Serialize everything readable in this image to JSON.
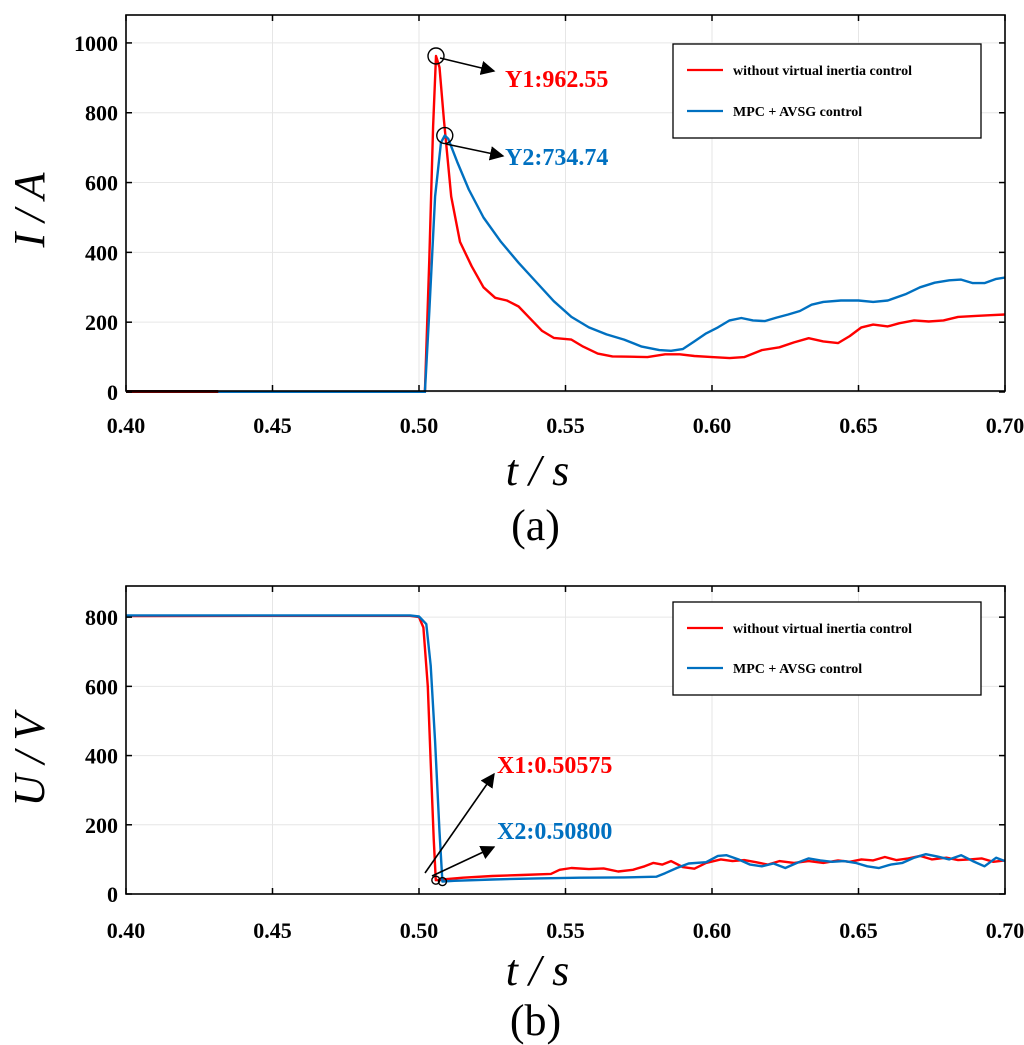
{
  "chart_data": [
    {
      "id": "a",
      "type": "line",
      "panel_label": "(a)",
      "xlabel": "t / s",
      "ylabel": "I / A",
      "xlim": [
        0.4,
        0.7
      ],
      "ylim": [
        0,
        1080
      ],
      "xticks": [
        "0.40",
        "0.45",
        "0.50",
        "0.55",
        "0.60",
        "0.65",
        "0.70"
      ],
      "yticks": [
        "0",
        "200",
        "400",
        "600",
        "800",
        "1000"
      ],
      "legend": "top-right",
      "series": [
        {
          "name": "without virtual inertia control",
          "color": "#ff0000",
          "points": [
            [
              0.4,
              0
            ],
            [
              0.502,
              0
            ],
            [
              0.5035,
              380
            ],
            [
              0.5048,
              760
            ],
            [
              0.5058,
              962.55
            ],
            [
              0.507,
              930
            ],
            [
              0.5085,
              780
            ],
            [
              0.511,
              560
            ],
            [
              0.514,
              430
            ],
            [
              0.518,
              360
            ],
            [
              0.522,
              300
            ],
            [
              0.526,
              270
            ],
            [
              0.53,
              262
            ],
            [
              0.534,
              245
            ],
            [
              0.538,
              210
            ],
            [
              0.542,
              175
            ],
            [
              0.546,
              155
            ],
            [
              0.552,
              150
            ],
            [
              0.556,
              130
            ],
            [
              0.561,
              110
            ],
            [
              0.566,
              102
            ],
            [
              0.572,
              101
            ],
            [
              0.578,
              100
            ],
            [
              0.584,
              108
            ],
            [
              0.589,
              108
            ],
            [
              0.594,
              103
            ],
            [
              0.6,
              100
            ],
            [
              0.606,
              97
            ],
            [
              0.611,
              100
            ],
            [
              0.617,
              120
            ],
            [
              0.623,
              128
            ],
            [
              0.628,
              142
            ],
            [
              0.633,
              154
            ],
            [
              0.638,
              145
            ],
            [
              0.643,
              140
            ],
            [
              0.647,
              160
            ],
            [
              0.651,
              185
            ],
            [
              0.655,
              193
            ],
            [
              0.66,
              188
            ],
            [
              0.664,
              197
            ],
            [
              0.669,
              205
            ],
            [
              0.674,
              202
            ],
            [
              0.679,
              205
            ],
            [
              0.684,
              215
            ],
            [
              0.69,
              218
            ],
            [
              0.695,
              220
            ],
            [
              0.7,
              222
            ]
          ]
        },
        {
          "name": "MPC + AVSG control",
          "color": "#0070c0",
          "points": [
            [
              0.4,
              0
            ],
            [
              0.502,
              0
            ],
            [
              0.5035,
              230
            ],
            [
              0.5055,
              560
            ],
            [
              0.5075,
              715
            ],
            [
              0.5088,
              734.74
            ],
            [
              0.51,
              725
            ],
            [
              0.513,
              660
            ],
            [
              0.517,
              580
            ],
            [
              0.522,
              500
            ],
            [
              0.528,
              430
            ],
            [
              0.534,
              370
            ],
            [
              0.54,
              315
            ],
            [
              0.546,
              260
            ],
            [
              0.552,
              215
            ],
            [
              0.558,
              185
            ],
            [
              0.564,
              165
            ],
            [
              0.57,
              150
            ],
            [
              0.576,
              130
            ],
            [
              0.582,
              120
            ],
            [
              0.586,
              118
            ],
            [
              0.59,
              123
            ],
            [
              0.594,
              145
            ],
            [
              0.598,
              168
            ],
            [
              0.602,
              185
            ],
            [
              0.606,
              205
            ],
            [
              0.61,
              212
            ],
            [
              0.614,
              205
            ],
            [
              0.618,
              203
            ],
            [
              0.622,
              213
            ],
            [
              0.626,
              222
            ],
            [
              0.63,
              232
            ],
            [
              0.634,
              250
            ],
            [
              0.638,
              258
            ],
            [
              0.644,
              262
            ],
            [
              0.65,
              262
            ],
            [
              0.655,
              258
            ],
            [
              0.66,
              262
            ],
            [
              0.666,
              280
            ],
            [
              0.671,
              300
            ],
            [
              0.676,
              313
            ],
            [
              0.681,
              320
            ],
            [
              0.685,
              322
            ],
            [
              0.689,
              312
            ],
            [
              0.693,
              312
            ],
            [
              0.697,
              324
            ],
            [
              0.7,
              328
            ]
          ]
        }
      ],
      "annotations": [
        {
          "text": "Y1:962.55",
          "x": 0.5058,
          "y": 962.55,
          "color": "#ff0000"
        },
        {
          "text": "Y2:734.74",
          "x": 0.5088,
          "y": 734.74,
          "color": "#0070c0"
        }
      ]
    },
    {
      "id": "b",
      "type": "line",
      "panel_label": "(b)",
      "xlabel": "t / s",
      "ylabel": "U / V",
      "xlim": [
        0.4,
        0.7
      ],
      "ylim": [
        0,
        890
      ],
      "xticks": [
        "0.40",
        "0.45",
        "0.50",
        "0.55",
        "0.60",
        "0.65",
        "0.70"
      ],
      "yticks": [
        "0",
        "200",
        "400",
        "600",
        "800"
      ],
      "legend": "top-right",
      "series": [
        {
          "name": "without virtual inertia control",
          "color": "#ff0000",
          "points": [
            [
              0.4,
              803
            ],
            [
              0.45,
              804
            ],
            [
              0.497,
              804
            ],
            [
              0.5,
              800
            ],
            [
              0.5015,
              770
            ],
            [
              0.503,
              600
            ],
            [
              0.504,
              380
            ],
            [
              0.505,
              160
            ],
            [
              0.50575,
              40
            ],
            [
              0.508,
              42
            ],
            [
              0.515,
              47
            ],
            [
              0.525,
              52
            ],
            [
              0.535,
              55
            ],
            [
              0.545,
              58
            ],
            [
              0.548,
              70
            ],
            [
              0.552,
              75
            ],
            [
              0.558,
              72
            ],
            [
              0.563,
              74
            ],
            [
              0.568,
              65
            ],
            [
              0.573,
              70
            ],
            [
              0.577,
              80
            ],
            [
              0.58,
              90
            ],
            [
              0.583,
              85
            ],
            [
              0.586,
              95
            ],
            [
              0.59,
              78
            ],
            [
              0.594,
              73
            ],
            [
              0.598,
              90
            ],
            [
              0.603,
              100
            ],
            [
              0.607,
              95
            ],
            [
              0.611,
              98
            ],
            [
              0.615,
              92
            ],
            [
              0.619,
              85
            ],
            [
              0.623,
              95
            ],
            [
              0.628,
              90
            ],
            [
              0.633,
              95
            ],
            [
              0.638,
              90
            ],
            [
              0.643,
              97
            ],
            [
              0.647,
              93
            ],
            [
              0.651,
              100
            ],
            [
              0.655,
              97
            ],
            [
              0.659,
              107
            ],
            [
              0.663,
              98
            ],
            [
              0.667,
              103
            ],
            [
              0.671,
              110
            ],
            [
              0.675,
              100
            ],
            [
              0.68,
              105
            ],
            [
              0.684,
              98
            ],
            [
              0.688,
              100
            ],
            [
              0.692,
              103
            ],
            [
              0.696,
              93
            ],
            [
              0.7,
              97
            ]
          ]
        },
        {
          "name": "MPC + AVSG control",
          "color": "#0070c0",
          "points": [
            [
              0.4,
              805
            ],
            [
              0.45,
              805
            ],
            [
              0.497,
              805
            ],
            [
              0.5,
              802
            ],
            [
              0.5025,
              780
            ],
            [
              0.504,
              660
            ],
            [
              0.5055,
              440
            ],
            [
              0.507,
              180
            ],
            [
              0.508,
              36
            ],
            [
              0.512,
              38
            ],
            [
              0.525,
              42
            ],
            [
              0.54,
              45
            ],
            [
              0.555,
              47
            ],
            [
              0.57,
              48
            ],
            [
              0.581,
              50
            ],
            [
              0.584,
              60
            ],
            [
              0.588,
              75
            ],
            [
              0.592,
              88
            ],
            [
              0.598,
              92
            ],
            [
              0.602,
              110
            ],
            [
              0.605,
              112
            ],
            [
              0.609,
              100
            ],
            [
              0.613,
              85
            ],
            [
              0.617,
              80
            ],
            [
              0.621,
              88
            ],
            [
              0.625,
              75
            ],
            [
              0.629,
              90
            ],
            [
              0.633,
              103
            ],
            [
              0.637,
              97
            ],
            [
              0.641,
              93
            ],
            [
              0.645,
              95
            ],
            [
              0.649,
              90
            ],
            [
              0.653,
              80
            ],
            [
              0.657,
              75
            ],
            [
              0.661,
              85
            ],
            [
              0.665,
              90
            ],
            [
              0.669,
              105
            ],
            [
              0.673,
              115
            ],
            [
              0.677,
              108
            ],
            [
              0.681,
              100
            ],
            [
              0.685,
              112
            ],
            [
              0.689,
              95
            ],
            [
              0.693,
              80
            ],
            [
              0.697,
              105
            ],
            [
              0.7,
              95
            ]
          ]
        }
      ],
      "annotations": [
        {
          "text": "X1:0.50575",
          "x": 0.50575,
          "y": 40,
          "color": "#ff0000"
        },
        {
          "text": "X2:0.50800",
          "x": 0.508,
          "y": 36,
          "color": "#0070c0"
        }
      ]
    }
  ]
}
